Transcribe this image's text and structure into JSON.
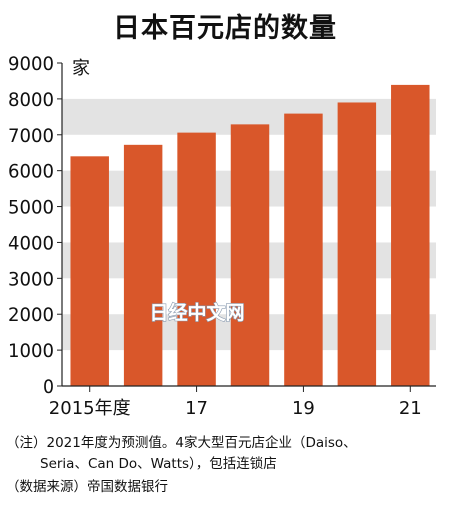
{
  "chart_data": {
    "type": "bar",
    "title": "日本百元店的数量",
    "ylabel": "家",
    "categories": [
      "2015年度",
      "16",
      "17",
      "18",
      "19",
      "20",
      "21"
    ],
    "category_labels_shown": [
      "2015年度",
      "",
      "17",
      "",
      "19",
      "",
      "21"
    ],
    "values": [
      6400,
      6720,
      7060,
      7290,
      7590,
      7900,
      8390
    ],
    "ylim": [
      0,
      9000
    ],
    "yticks": [
      0,
      1000,
      2000,
      3000,
      4000,
      5000,
      6000,
      7000,
      8000,
      9000
    ],
    "bar_color": "#d9572a",
    "band_color": "#e3e3e3",
    "watermark": "日经中文网"
  },
  "notes": {
    "line1": "（注）2021年度为预测值。4家大型百元店企业（Daiso、",
    "line2": "Seria、Can Do、Watts），包括连锁店",
    "source": "（数据来源）帝国数据银行"
  }
}
